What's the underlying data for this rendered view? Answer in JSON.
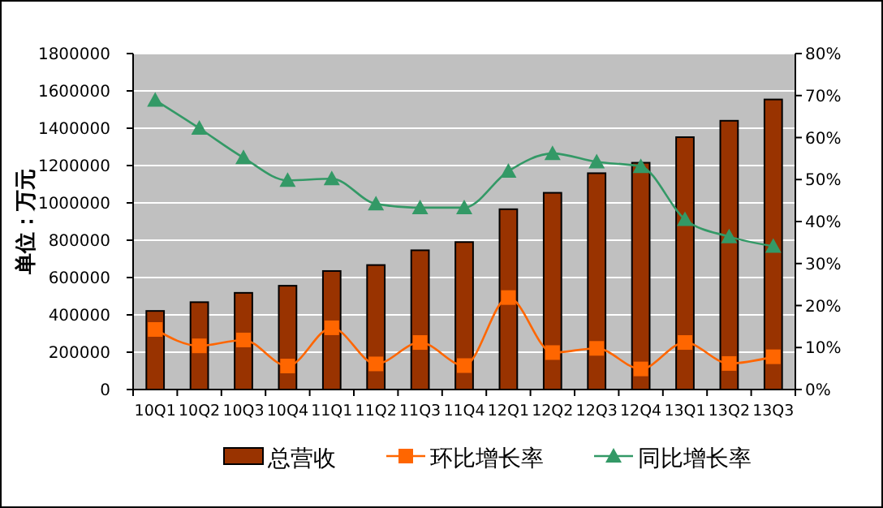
{
  "chart_data": {
    "type": "bar",
    "ylabel": "单位：万元",
    "categories": [
      "10Q1",
      "10Q2",
      "10Q3",
      "10Q4",
      "11Q1",
      "11Q2",
      "11Q3",
      "11Q4",
      "12Q1",
      "12Q2",
      "12Q3",
      "12Q4",
      "13Q1",
      "13Q2",
      "13Q3"
    ],
    "series": [
      {
        "name": "总营收",
        "color": "#993300",
        "values": [
          421000,
          468000,
          518000,
          556000,
          635000,
          667000,
          746000,
          790000,
          966000,
          1054000,
          1159000,
          1215000,
          1352000,
          1440000,
          1554000
        ]
      },
      {
        "name": "环比增长率",
        "type": "line",
        "axis": "y2",
        "color": "#ff6600",
        "marker": "square",
        "values": [
          14.3,
          10.4,
          11.8,
          5.6,
          14.7,
          6.1,
          11.2,
          5.7,
          21.9,
          8.8,
          9.8,
          4.9,
          11.2,
          6.2,
          7.8
        ]
      },
      {
        "name": "同比增长率",
        "type": "line",
        "axis": "y2",
        "color": "#339966",
        "marker": "triangle",
        "values": [
          68.9,
          62.2,
          55.2,
          49.8,
          50.2,
          44.2,
          43.3,
          43.3,
          52.0,
          56.2,
          54.2,
          53.1,
          40.5,
          36.4,
          34.1
        ]
      }
    ],
    "ylim": [
      0,
      1800000
    ],
    "yticks": [
      0,
      200000,
      400000,
      600000,
      800000,
      1000000,
      1200000,
      1400000,
      1600000,
      1800000
    ],
    "y2lim": [
      0,
      80
    ],
    "y2ticks": [
      {
        "value": 0,
        "label": "0%"
      },
      {
        "value": 10,
        "label": "10%"
      },
      {
        "value": 20,
        "label": "20%"
      },
      {
        "value": 30,
        "label": "30%"
      },
      {
        "value": 40,
        "label": "40%"
      },
      {
        "value": 50,
        "label": "50%"
      },
      {
        "value": 60,
        "label": "60%"
      },
      {
        "value": 70,
        "label": "70%"
      },
      {
        "value": 80,
        "label": "80%"
      }
    ],
    "grid": "y",
    "legend": "bottom"
  }
}
